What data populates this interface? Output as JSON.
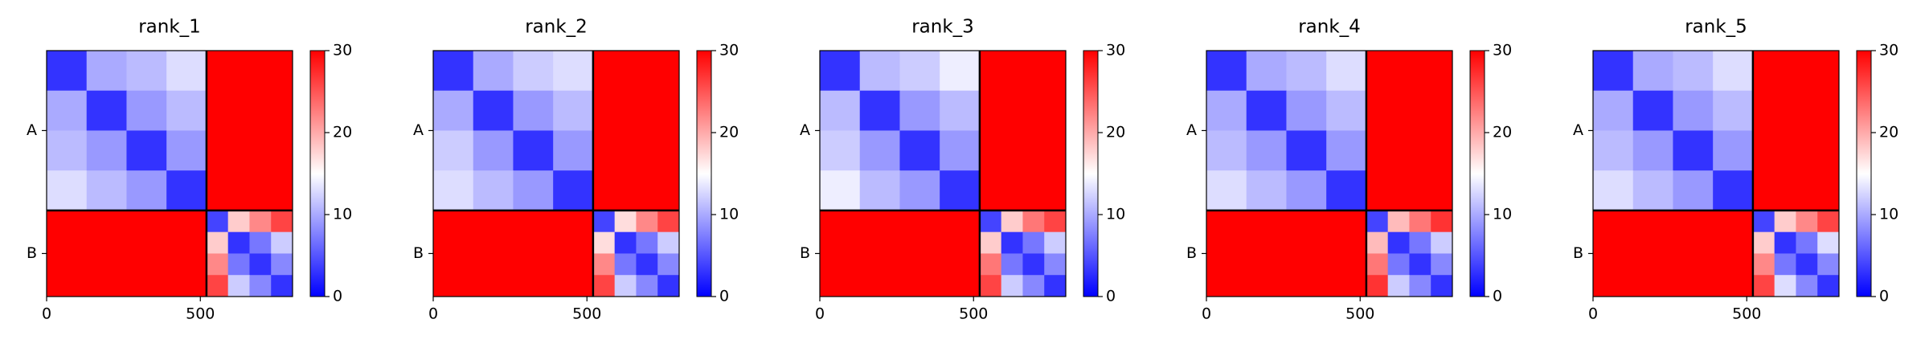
{
  "chart_data": [
    {
      "type": "heatmap",
      "title": "rank_1",
      "bins": [
        0,
        130,
        260,
        390,
        520,
        590,
        660,
        730,
        800
      ],
      "values": [
        [
          3,
          10,
          11,
          13,
          30,
          30,
          30,
          30
        ],
        [
          10,
          3,
          9,
          11,
          30,
          30,
          30,
          30
        ],
        [
          11,
          9,
          3,
          9,
          30,
          30,
          30,
          30
        ],
        [
          13,
          11,
          9,
          3,
          30,
          30,
          30,
          30
        ],
        [
          30,
          30,
          30,
          30,
          4,
          18,
          22,
          26
        ],
        [
          30,
          30,
          30,
          30,
          18,
          3,
          7,
          12
        ],
        [
          30,
          30,
          30,
          30,
          22,
          7,
          3,
          8
        ],
        [
          30,
          30,
          30,
          30,
          26,
          12,
          8,
          3
        ]
      ],
      "xlim": [
        0,
        800
      ],
      "ylim": [
        800,
        0
      ],
      "xticks": [
        0,
        500
      ],
      "yticks": [
        {
          "value": 260,
          "label": "A"
        },
        {
          "value": 660,
          "label": "B"
        }
      ],
      "chain_boundaries": [
        520
      ],
      "clim": [
        0,
        30
      ],
      "colorbar_ticks": [
        0,
        10,
        20,
        30
      ],
      "colormap": [
        "#0000ff",
        "#ffffff",
        "#ff0000"
      ]
    },
    {
      "type": "heatmap",
      "title": "rank_2",
      "bins": [
        0,
        130,
        260,
        390,
        520,
        590,
        660,
        730,
        800
      ],
      "values": [
        [
          3,
          10,
          12,
          13,
          30,
          30,
          30,
          30
        ],
        [
          10,
          3,
          9,
          11,
          30,
          30,
          30,
          30
        ],
        [
          12,
          9,
          3,
          9,
          30,
          30,
          30,
          30
        ],
        [
          13,
          11,
          9,
          3,
          30,
          30,
          30,
          30
        ],
        [
          30,
          30,
          30,
          30,
          4,
          17,
          22,
          26
        ],
        [
          30,
          30,
          30,
          30,
          17,
          3,
          7,
          12
        ],
        [
          30,
          30,
          30,
          30,
          22,
          7,
          3,
          8
        ],
        [
          30,
          30,
          30,
          30,
          26,
          12,
          8,
          3
        ]
      ],
      "xlim": [
        0,
        800
      ],
      "ylim": [
        800,
        0
      ],
      "xticks": [
        0,
        500
      ],
      "yticks": [
        {
          "value": 260,
          "label": "A"
        },
        {
          "value": 660,
          "label": "B"
        }
      ],
      "chain_boundaries": [
        520
      ],
      "clim": [
        0,
        30
      ],
      "colorbar_ticks": [
        0,
        10,
        20,
        30
      ],
      "colormap": [
        "#0000ff",
        "#ffffff",
        "#ff0000"
      ]
    },
    {
      "type": "heatmap",
      "title": "rank_3",
      "bins": [
        0,
        130,
        260,
        390,
        520,
        590,
        660,
        730,
        800
      ],
      "values": [
        [
          3,
          11,
          12,
          14,
          30,
          30,
          30,
          30
        ],
        [
          11,
          3,
          9,
          11,
          30,
          30,
          30,
          30
        ],
        [
          12,
          9,
          3,
          9,
          30,
          30,
          30,
          30
        ],
        [
          14,
          11,
          9,
          3,
          30,
          30,
          30,
          30
        ],
        [
          30,
          30,
          30,
          30,
          4,
          18,
          23,
          26
        ],
        [
          30,
          30,
          30,
          30,
          18,
          3,
          7,
          12
        ],
        [
          30,
          30,
          30,
          30,
          23,
          7,
          3,
          8
        ],
        [
          30,
          30,
          30,
          30,
          26,
          12,
          8,
          3
        ]
      ],
      "xlim": [
        0,
        800
      ],
      "ylim": [
        800,
        0
      ],
      "xticks": [
        0,
        500
      ],
      "yticks": [
        {
          "value": 260,
          "label": "A"
        },
        {
          "value": 660,
          "label": "B"
        }
      ],
      "chain_boundaries": [
        520
      ],
      "clim": [
        0,
        30
      ],
      "colorbar_ticks": [
        0,
        10,
        20,
        30
      ],
      "colormap": [
        "#0000ff",
        "#ffffff",
        "#ff0000"
      ]
    },
    {
      "type": "heatmap",
      "title": "rank_4",
      "bins": [
        0,
        130,
        260,
        390,
        520,
        590,
        660,
        730,
        800
      ],
      "values": [
        [
          3,
          10,
          11,
          13,
          30,
          30,
          30,
          30
        ],
        [
          10,
          3,
          9,
          11,
          30,
          30,
          30,
          30
        ],
        [
          11,
          9,
          3,
          9,
          30,
          30,
          30,
          30
        ],
        [
          13,
          11,
          9,
          3,
          30,
          30,
          30,
          30
        ],
        [
          30,
          30,
          30,
          30,
          4,
          19,
          23,
          27
        ],
        [
          30,
          30,
          30,
          30,
          19,
          3,
          7,
          12
        ],
        [
          30,
          30,
          30,
          30,
          23,
          7,
          3,
          8
        ],
        [
          30,
          30,
          30,
          30,
          27,
          12,
          8,
          3
        ]
      ],
      "xlim": [
        0,
        800
      ],
      "ylim": [
        800,
        0
      ],
      "xticks": [
        0,
        500
      ],
      "yticks": [
        {
          "value": 260,
          "label": "A"
        },
        {
          "value": 660,
          "label": "B"
        }
      ],
      "chain_boundaries": [
        520
      ],
      "clim": [
        0,
        30
      ],
      "colorbar_ticks": [
        0,
        10,
        20,
        30
      ],
      "colormap": [
        "#0000ff",
        "#ffffff",
        "#ff0000"
      ]
    },
    {
      "type": "heatmap",
      "title": "rank_5",
      "bins": [
        0,
        130,
        260,
        390,
        520,
        590,
        660,
        730,
        800
      ],
      "values": [
        [
          3,
          10,
          11,
          13,
          30,
          30,
          30,
          30
        ],
        [
          10,
          3,
          9,
          11,
          30,
          30,
          30,
          30
        ],
        [
          11,
          9,
          3,
          9,
          30,
          30,
          30,
          30
        ],
        [
          13,
          11,
          9,
          3,
          30,
          30,
          30,
          30
        ],
        [
          30,
          30,
          30,
          30,
          4,
          18,
          22,
          26
        ],
        [
          30,
          30,
          30,
          30,
          18,
          3,
          7,
          13
        ],
        [
          30,
          30,
          30,
          30,
          22,
          7,
          3,
          8
        ],
        [
          30,
          30,
          30,
          30,
          26,
          13,
          8,
          3
        ]
      ],
      "xlim": [
        0,
        800
      ],
      "ylim": [
        800,
        0
      ],
      "xticks": [
        0,
        500
      ],
      "yticks": [
        {
          "value": 260,
          "label": "A"
        },
        {
          "value": 660,
          "label": "B"
        }
      ],
      "chain_boundaries": [
        520
      ],
      "clim": [
        0,
        30
      ],
      "colorbar_ticks": [
        0,
        10,
        20,
        30
      ],
      "colormap": [
        "#0000ff",
        "#ffffff",
        "#ff0000"
      ]
    }
  ]
}
